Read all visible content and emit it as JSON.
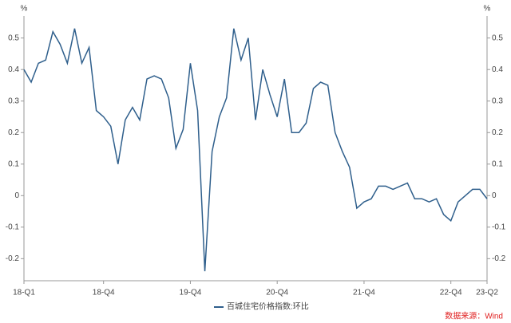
{
  "chart_data": {
    "type": "line",
    "y_unit": "%",
    "y2_unit": "%",
    "source": "数据来源：Wind",
    "categories": [
      "18-Q1",
      null,
      null,
      null,
      null,
      null,
      null,
      null,
      null,
      null,
      null,
      "18-Q4",
      null,
      null,
      null,
      null,
      null,
      null,
      null,
      null,
      null,
      null,
      null,
      "19-Q4",
      null,
      null,
      null,
      null,
      null,
      null,
      null,
      null,
      null,
      null,
      null,
      "20-Q4",
      null,
      null,
      null,
      null,
      null,
      null,
      null,
      null,
      null,
      null,
      null,
      "21-Q4",
      null,
      null,
      null,
      null,
      null,
      null,
      null,
      null,
      null,
      null,
      null,
      "22-Q4",
      null,
      null,
      null,
      null,
      "23-Q2"
    ],
    "series": [
      {
        "name": "百城住宅价格指数:环比",
        "color": "#2f5f8c",
        "values": [
          0.4,
          0.36,
          0.42,
          0.43,
          0.52,
          0.48,
          0.42,
          0.53,
          0.42,
          0.47,
          0.27,
          0.25,
          0.22,
          0.1,
          0.24,
          0.28,
          0.24,
          0.37,
          0.38,
          0.37,
          0.31,
          0.15,
          0.21,
          0.42,
          0.27,
          -0.24,
          0.14,
          0.25,
          0.31,
          0.53,
          0.43,
          0.5,
          0.24,
          0.4,
          0.32,
          0.25,
          0.37,
          0.2,
          0.2,
          0.23,
          0.34,
          0.36,
          0.35,
          0.2,
          0.14,
          0.09,
          -0.04,
          -0.02,
          -0.01,
          0.03,
          0.03,
          0.02,
          0.03,
          0.04,
          -0.01,
          -0.01,
          -0.02,
          -0.01,
          -0.06,
          -0.08,
          -0.02,
          0.0,
          0.02,
          0.02,
          -0.01
        ]
      }
    ],
    "ylim": [
      -0.27,
      0.57
    ],
    "yticks": [
      -0.2,
      -0.1,
      0,
      0.1,
      0.2,
      0.3,
      0.4,
      0.5
    ],
    "y2lim": [
      -0.27,
      0.57
    ],
    "y2ticks": [
      -0.2,
      -0.1,
      0,
      0.1,
      0.2,
      0.3,
      0.4,
      0.5
    ],
    "grid": false
  }
}
